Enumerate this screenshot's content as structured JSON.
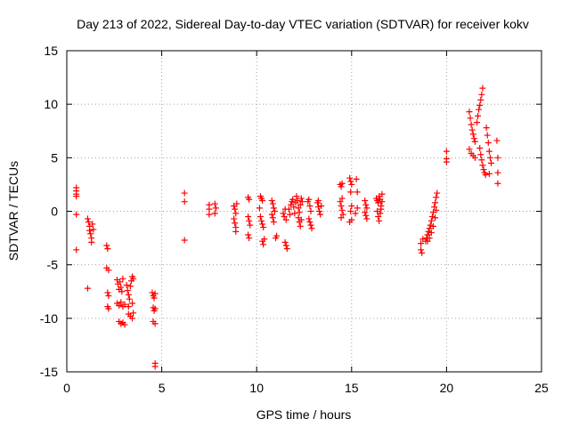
{
  "chart_data": {
    "type": "scatter",
    "title": "Day 213 of 2022, Sidereal Day-to-day VTEC variation (SDTVAR) for receiver kokv",
    "xlabel": "GPS time / hours",
    "ylabel": "SDTVAR / TECUs",
    "xlim": [
      0,
      25
    ],
    "ylim": [
      -15,
      15
    ],
    "xticks": [
      0,
      5,
      10,
      15,
      20,
      25
    ],
    "yticks": [
      -15,
      -10,
      -5,
      0,
      5,
      10,
      15
    ],
    "grid": true,
    "marker": "+",
    "color": "#ff0000",
    "series": [
      {
        "name": "SDTVAR",
        "points": [
          [
            0.5,
            2.2
          ],
          [
            0.5,
            1.9
          ],
          [
            0.5,
            1.6
          ],
          [
            0.5,
            1.4
          ],
          [
            0.5,
            -0.3
          ],
          [
            0.5,
            -3.6
          ],
          [
            1.1,
            -0.7
          ],
          [
            1.15,
            -1.0
          ],
          [
            1.2,
            -1.4
          ],
          [
            1.2,
            -1.8
          ],
          [
            1.25,
            -2.1
          ],
          [
            1.3,
            -2.5
          ],
          [
            1.3,
            -2.9
          ],
          [
            1.35,
            -1.2
          ],
          [
            1.4,
            -1.7
          ],
          [
            1.1,
            -7.2
          ],
          [
            2.1,
            -3.2
          ],
          [
            2.15,
            -3.5
          ],
          [
            2.1,
            -5.3
          ],
          [
            2.2,
            -5.5
          ],
          [
            2.15,
            -7.6
          ],
          [
            2.2,
            -7.9
          ],
          [
            2.15,
            -8.9
          ],
          [
            2.2,
            -9.1
          ],
          [
            2.65,
            -6.4
          ],
          [
            2.7,
            -6.8
          ],
          [
            2.75,
            -7.3
          ],
          [
            2.8,
            -6.6
          ],
          [
            2.85,
            -7.1
          ],
          [
            2.9,
            -7.5
          ],
          [
            2.95,
            -6.3
          ],
          [
            2.65,
            -8.6
          ],
          [
            2.75,
            -8.8
          ],
          [
            2.85,
            -8.5
          ],
          [
            2.95,
            -8.9
          ],
          [
            3.05,
            -8.7
          ],
          [
            2.75,
            -10.3
          ],
          [
            2.85,
            -10.5
          ],
          [
            2.95,
            -10.4
          ],
          [
            3.05,
            -10.6
          ],
          [
            3.15,
            -6.9
          ],
          [
            3.2,
            -7.4
          ],
          [
            3.25,
            -7.8
          ],
          [
            3.3,
            -8.2
          ],
          [
            3.35,
            -7.0
          ],
          [
            3.4,
            -6.5
          ],
          [
            3.45,
            -6.1
          ],
          [
            3.5,
            -6.3
          ],
          [
            3.25,
            -9.6
          ],
          [
            3.35,
            -9.8
          ],
          [
            3.45,
            -10.0
          ],
          [
            3.5,
            -9.5
          ],
          [
            3.25,
            -8.9
          ],
          [
            3.45,
            -8.6
          ],
          [
            4.5,
            -7.6
          ],
          [
            4.55,
            -7.9
          ],
          [
            4.6,
            -8.1
          ],
          [
            4.65,
            -7.7
          ],
          [
            4.55,
            -9.0
          ],
          [
            4.6,
            -9.3
          ],
          [
            4.65,
            -9.1
          ],
          [
            4.55,
            -10.3
          ],
          [
            4.65,
            -10.5
          ],
          [
            4.65,
            -14.2
          ],
          [
            4.65,
            -14.5
          ],
          [
            6.2,
            1.7
          ],
          [
            6.2,
            0.9
          ],
          [
            6.2,
            -2.7
          ],
          [
            7.5,
            0.6
          ],
          [
            7.5,
            0.2
          ],
          [
            7.5,
            -0.3
          ],
          [
            7.8,
            0.7
          ],
          [
            7.85,
            0.3
          ],
          [
            7.8,
            -0.2
          ],
          [
            8.8,
            0.5
          ],
          [
            8.85,
            0.2
          ],
          [
            8.9,
            -0.2
          ],
          [
            8.8,
            -0.7
          ],
          [
            8.85,
            -1.1
          ],
          [
            8.9,
            -1.5
          ],
          [
            8.95,
            0.7
          ],
          [
            8.9,
            -1.9
          ],
          [
            9.55,
            1.3
          ],
          [
            9.6,
            1.1
          ],
          [
            9.55,
            -0.5
          ],
          [
            9.6,
            -0.9
          ],
          [
            9.65,
            -1.3
          ],
          [
            9.55,
            -2.2
          ],
          [
            9.6,
            -2.5
          ],
          [
            10.2,
            1.4
          ],
          [
            10.25,
            1.2
          ],
          [
            10.3,
            1.0
          ],
          [
            10.15,
            0.3
          ],
          [
            10.2,
            -0.5
          ],
          [
            10.25,
            -0.9
          ],
          [
            10.3,
            -1.2
          ],
          [
            10.35,
            -1.5
          ],
          [
            10.3,
            -2.8
          ],
          [
            10.35,
            -3.1
          ],
          [
            10.4,
            -2.6
          ],
          [
            10.8,
            1.0
          ],
          [
            10.85,
            0.7
          ],
          [
            10.9,
            0.3
          ],
          [
            10.8,
            -0.3
          ],
          [
            10.85,
            -0.6
          ],
          [
            10.9,
            -1.0
          ],
          [
            10.95,
            0.0
          ],
          [
            11.05,
            -2.3
          ],
          [
            11.0,
            -2.5
          ],
          [
            11.4,
            -0.2
          ],
          [
            11.45,
            -0.5
          ],
          [
            11.5,
            0.2
          ],
          [
            11.55,
            -0.8
          ],
          [
            11.5,
            -2.9
          ],
          [
            11.55,
            -3.2
          ],
          [
            11.6,
            -3.5
          ],
          [
            11.7,
            0.2
          ],
          [
            11.75,
            -0.3
          ],
          [
            11.8,
            0.6
          ],
          [
            11.85,
            0.9
          ],
          [
            11.9,
            1.1
          ],
          [
            11.95,
            0.4
          ],
          [
            12.0,
            -0.2
          ],
          [
            12.05,
            0.8
          ],
          [
            12.1,
            1.4
          ],
          [
            12.15,
            1.0
          ],
          [
            12.2,
            0.3
          ],
          [
            12.25,
            -0.1
          ],
          [
            12.3,
            0.6
          ],
          [
            12.35,
            1.2
          ],
          [
            12.4,
            0.9
          ],
          [
            12.2,
            -0.6
          ],
          [
            12.25,
            -1.0
          ],
          [
            12.3,
            -1.4
          ],
          [
            12.35,
            -0.8
          ],
          [
            12.7,
            0.9
          ],
          [
            12.75,
            1.1
          ],
          [
            12.8,
            0.5
          ],
          [
            12.85,
            0.0
          ],
          [
            12.8,
            -1.0
          ],
          [
            12.85,
            -1.3
          ],
          [
            12.9,
            -1.6
          ],
          [
            12.75,
            -0.7
          ],
          [
            13.2,
            0.8
          ],
          [
            13.25,
            0.4
          ],
          [
            13.3,
            0.0
          ],
          [
            13.35,
            -0.3
          ],
          [
            13.4,
            0.5
          ],
          [
            13.25,
            1.0
          ],
          [
            14.4,
            2.5
          ],
          [
            14.45,
            2.3
          ],
          [
            14.5,
            2.6
          ],
          [
            14.4,
            0.9
          ],
          [
            14.45,
            0.5
          ],
          [
            14.5,
            0.1
          ],
          [
            14.55,
            -0.3
          ],
          [
            14.45,
            -0.6
          ],
          [
            14.5,
            1.2
          ],
          [
            14.9,
            3.1
          ],
          [
            14.95,
            2.8
          ],
          [
            15.0,
            2.5
          ],
          [
            14.95,
            1.8
          ],
          [
            15.0,
            0.5
          ],
          [
            14.95,
            0.0
          ],
          [
            14.9,
            -1.0
          ],
          [
            15.0,
            -0.8
          ],
          [
            15.25,
            3.0
          ],
          [
            15.3,
            1.8
          ],
          [
            15.3,
            0.3
          ],
          [
            15.2,
            -0.2
          ],
          [
            15.7,
            1.0
          ],
          [
            15.75,
            0.6
          ],
          [
            15.7,
            -0.1
          ],
          [
            15.75,
            -0.4
          ],
          [
            15.8,
            -0.7
          ],
          [
            15.8,
            0.3
          ],
          [
            16.3,
            1.2
          ],
          [
            16.35,
            1.0
          ],
          [
            16.4,
            0.8
          ],
          [
            16.45,
            1.4
          ],
          [
            16.5,
            1.1
          ],
          [
            16.55,
            0.5
          ],
          [
            16.6,
            0.9
          ],
          [
            16.35,
            0.0
          ],
          [
            16.4,
            -0.5
          ],
          [
            16.45,
            -0.9
          ],
          [
            16.5,
            -0.2
          ],
          [
            16.55,
            0.2
          ],
          [
            16.6,
            1.6
          ],
          [
            18.65,
            -3.0
          ],
          [
            18.65,
            -3.6
          ],
          [
            18.7,
            -3.9
          ],
          [
            18.75,
            -2.6
          ],
          [
            18.9,
            -2.8
          ],
          [
            18.95,
            -2.5
          ],
          [
            19.0,
            -2.2
          ],
          [
            19.05,
            -1.9
          ],
          [
            19.1,
            -1.6
          ],
          [
            19.15,
            -1.3
          ],
          [
            19.2,
            -0.9
          ],
          [
            19.25,
            -0.5
          ],
          [
            19.3,
            -0.1
          ],
          [
            19.35,
            0.4
          ],
          [
            19.4,
            0.8
          ],
          [
            19.45,
            1.3
          ],
          [
            19.5,
            1.7
          ],
          [
            19.0,
            -2.8
          ],
          [
            19.1,
            -2.5
          ],
          [
            19.2,
            -2.0
          ],
          [
            19.3,
            -1.4
          ],
          [
            19.4,
            -0.6
          ],
          [
            19.45,
            0.1
          ],
          [
            20.0,
            5.6
          ],
          [
            20.0,
            4.9
          ],
          [
            20.0,
            4.6
          ],
          [
            21.2,
            9.3
          ],
          [
            21.25,
            8.7
          ],
          [
            21.3,
            8.1
          ],
          [
            21.35,
            7.6
          ],
          [
            21.4,
            7.2
          ],
          [
            21.45,
            6.8
          ],
          [
            21.5,
            6.5
          ],
          [
            21.2,
            5.8
          ],
          [
            21.3,
            5.4
          ],
          [
            21.4,
            5.2
          ],
          [
            21.5,
            5.0
          ],
          [
            21.6,
            8.3
          ],
          [
            21.65,
            8.9
          ],
          [
            21.7,
            9.5
          ],
          [
            21.75,
            9.9
          ],
          [
            21.8,
            10.4
          ],
          [
            21.85,
            10.9
          ],
          [
            21.9,
            11.5
          ],
          [
            21.75,
            5.9
          ],
          [
            21.8,
            5.3
          ],
          [
            21.85,
            4.8
          ],
          [
            21.9,
            4.3
          ],
          [
            21.95,
            3.9
          ],
          [
            22.0,
            3.6
          ],
          [
            22.05,
            3.4
          ],
          [
            22.1,
            7.8
          ],
          [
            22.15,
            7.1
          ],
          [
            22.2,
            6.4
          ],
          [
            22.25,
            5.6
          ],
          [
            22.3,
            5.0
          ],
          [
            22.35,
            4.5
          ],
          [
            22.25,
            3.5
          ],
          [
            22.65,
            6.6
          ],
          [
            22.7,
            5.0
          ],
          [
            22.7,
            3.6
          ],
          [
            22.7,
            2.6
          ]
        ]
      }
    ]
  }
}
